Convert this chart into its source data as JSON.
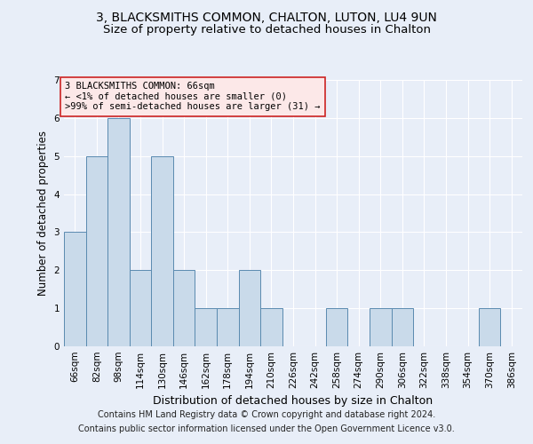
{
  "title": "3, BLACKSMITHS COMMON, CHALTON, LUTON, LU4 9UN",
  "subtitle": "Size of property relative to detached houses in Chalton",
  "xlabel": "Distribution of detached houses by size in Chalton",
  "ylabel": "Number of detached properties",
  "categories": [
    "66sqm",
    "82sqm",
    "98sqm",
    "114sqm",
    "130sqm",
    "146sqm",
    "162sqm",
    "178sqm",
    "194sqm",
    "210sqm",
    "226sqm",
    "242sqm",
    "258sqm",
    "274sqm",
    "290sqm",
    "306sqm",
    "322sqm",
    "338sqm",
    "354sqm",
    "370sqm",
    "386sqm"
  ],
  "values": [
    3,
    5,
    6,
    2,
    5,
    2,
    1,
    1,
    2,
    1,
    0,
    0,
    1,
    0,
    1,
    1,
    0,
    0,
    0,
    1,
    0
  ],
  "bar_color": "#c9daea",
  "bar_edge_color": "#5a8ab0",
  "ylim": [
    0,
    7
  ],
  "yticks": [
    0,
    1,
    2,
    3,
    4,
    5,
    6,
    7
  ],
  "annotation_line1": "3 BLACKSMITHS COMMON: 66sqm",
  "annotation_line2": "← <1% of detached houses are smaller (0)",
  "annotation_line3": ">99% of semi-detached houses are larger (31) →",
  "annotation_box_facecolor": "#fce8e8",
  "annotation_box_edgecolor": "#cc2222",
  "footer_line1": "Contains HM Land Registry data © Crown copyright and database right 2024.",
  "footer_line2": "Contains public sector information licensed under the Open Government Licence v3.0.",
  "background_color": "#e8eef8",
  "grid_color": "#ffffff",
  "title_fontsize": 10,
  "subtitle_fontsize": 9.5,
  "ylabel_fontsize": 8.5,
  "xlabel_fontsize": 9,
  "tick_fontsize": 7.5,
  "annotation_fontsize": 7.5,
  "footer_fontsize": 7
}
